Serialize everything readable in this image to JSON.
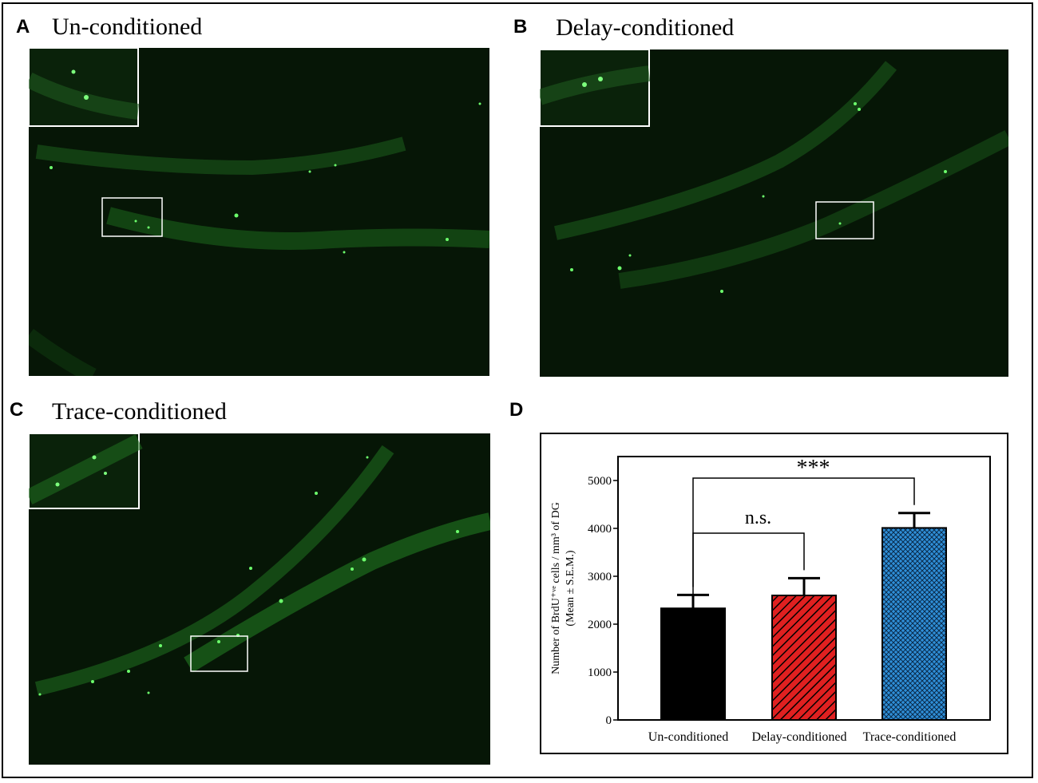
{
  "panels": {
    "a": {
      "letter": "A",
      "title": "Un-conditioned"
    },
    "b": {
      "letter": "B",
      "title": "Delay-conditioned"
    },
    "c": {
      "letter": "C",
      "title": "Trace-conditioned"
    },
    "d": {
      "letter": "D"
    }
  },
  "colors": {
    "micro_bg": "#061606",
    "signal": "#3ee03e",
    "inset_border": "#ffffff"
  },
  "chart_data": {
    "type": "bar",
    "categories": [
      "Un-conditioned",
      "Delay-conditioned",
      "Trace-conditioned"
    ],
    "values": [
      2330,
      2600,
      4010
    ],
    "errors": [
      280,
      360,
      310
    ],
    "bar_fills": [
      "solid-black",
      "red-diagonal-hatch",
      "blue-crosshatch"
    ],
    "ylabel_line1": "Number of BrdU⁺ᵛᵉ cells / mm³ of DG",
    "ylabel_line2": "(Mean ± S.E.M.)",
    "ylim": [
      0,
      5500
    ],
    "yticks": [
      0,
      1000,
      2000,
      3000,
      4000,
      5000
    ],
    "grid": false,
    "annotations": [
      {
        "from": "Un-conditioned",
        "to": "Delay-conditioned",
        "text": "n.s."
      },
      {
        "from": "Un-conditioned",
        "to": "Trace-conditioned",
        "text": "***"
      }
    ]
  }
}
